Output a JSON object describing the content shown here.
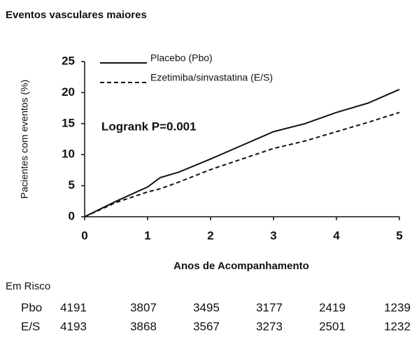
{
  "chart_data": {
    "type": "line",
    "title": "Eventos vasculares maiores",
    "x_label": "Anos de Acompanhamento",
    "y_label": "Pacientes com eventos (%)",
    "annotation": "Logrank  P=0.001",
    "x": [
      0,
      0.5,
      1,
      1.2,
      1.5,
      2,
      2.5,
      3,
      3.5,
      4,
      4.5,
      5
    ],
    "series": [
      {
        "name": "Placebo (Pbo)",
        "color": "#111111",
        "style": "solid",
        "values": [
          0,
          2.5,
          4.8,
          6.3,
          7.2,
          9.3,
          11.5,
          13.7,
          15.0,
          16.8,
          18.3,
          20.5
        ]
      },
      {
        "name": "Ezetimiba/sinvastatina (E/S)",
        "color": "#111111",
        "style": "dashed",
        "values": [
          0,
          2.3,
          4.0,
          4.5,
          5.6,
          7.6,
          9.3,
          11.0,
          12.2,
          13.7,
          15.2,
          16.8
        ]
      }
    ],
    "xlim": [
      0,
      5
    ],
    "xticks": [
      0,
      1,
      2,
      3,
      4,
      5
    ],
    "ylim": [
      0,
      25
    ],
    "yticks": [
      0,
      5,
      10,
      15,
      20,
      25
    ],
    "grid": false
  },
  "at_risk": {
    "title": "Em Risco",
    "rows": [
      {
        "label": "Pbo",
        "values": [
          "4191",
          "3807",
          "3495",
          "3177",
          "2419",
          "1239"
        ]
      },
      {
        "label": "E/S",
        "values": [
          "4193",
          "3868",
          "3567",
          "3273",
          "2501",
          "1232"
        ]
      }
    ]
  }
}
